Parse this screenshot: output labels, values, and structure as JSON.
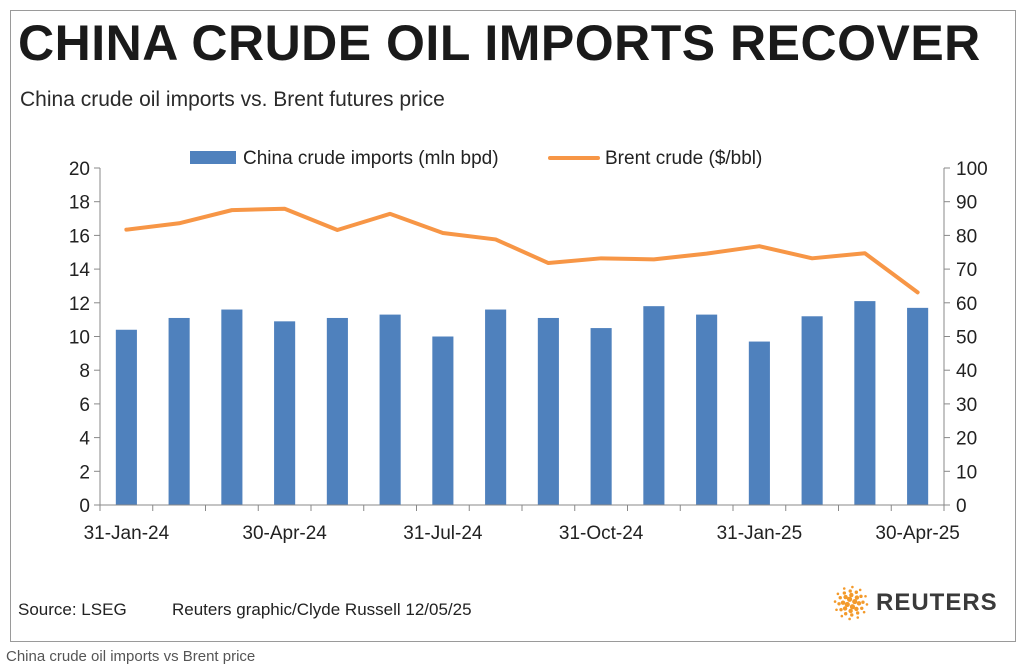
{
  "title": "CHINA CRUDE OIL IMPORTS RECOVER",
  "subtitle": "China crude oil imports vs. Brent futures price",
  "source": "Source: LSEG",
  "credit": "Reuters graphic/Clyde Russell 12/05/25",
  "logo_text": "REUTERS",
  "caption": "China crude oil imports vs Brent price",
  "colors": {
    "bars": "#4f81bd",
    "line": "#f79646",
    "logo": "#f39a2b"
  },
  "chart_data": {
    "type": "bar",
    "categories": [
      "31-Jan-24",
      "29-Feb-24",
      "31-Mar-24",
      "30-Apr-24",
      "31-May-24",
      "30-Jun-24",
      "31-Jul-24",
      "31-Aug-24",
      "30-Sep-24",
      "31-Oct-24",
      "30-Nov-24",
      "31-Dec-24",
      "31-Jan-25",
      "28-Feb-25",
      "31-Mar-25",
      "30-Apr-25"
    ],
    "x_tick_labels": [
      "31-Jan-24",
      "30-Apr-24",
      "31-Jul-24",
      "31-Oct-24",
      "31-Jan-25",
      "30-Apr-25"
    ],
    "x_tick_indices": [
      0,
      3,
      6,
      9,
      12,
      15
    ],
    "series": [
      {
        "name": "China crude imports (mln bpd)",
        "type": "bar",
        "axis": "left",
        "values": [
          10.4,
          11.1,
          11.6,
          10.9,
          11.1,
          11.3,
          10.0,
          11.6,
          11.1,
          10.5,
          11.8,
          11.3,
          9.7,
          11.2,
          12.1,
          11.7
        ]
      },
      {
        "name": "Brent crude ($/bbl)",
        "type": "line",
        "axis": "right",
        "values": [
          81.7,
          83.6,
          87.5,
          87.9,
          81.6,
          86.4,
          80.7,
          78.8,
          71.8,
          73.2,
          72.9,
          74.6,
          76.8,
          73.2,
          74.7,
          63.1
        ]
      }
    ],
    "y_left": {
      "ylim": [
        0,
        20
      ],
      "ticks": [
        "0",
        "2",
        "4",
        "6",
        "8",
        "10",
        "12",
        "14",
        "16",
        "18",
        "20"
      ]
    },
    "y_right": {
      "ylim": [
        0,
        100
      ],
      "ticks": [
        "0",
        "10",
        "20",
        "30",
        "40",
        "50",
        "60",
        "70",
        "80",
        "90",
        "100"
      ]
    },
    "legend_position": "top",
    "grid": false
  }
}
